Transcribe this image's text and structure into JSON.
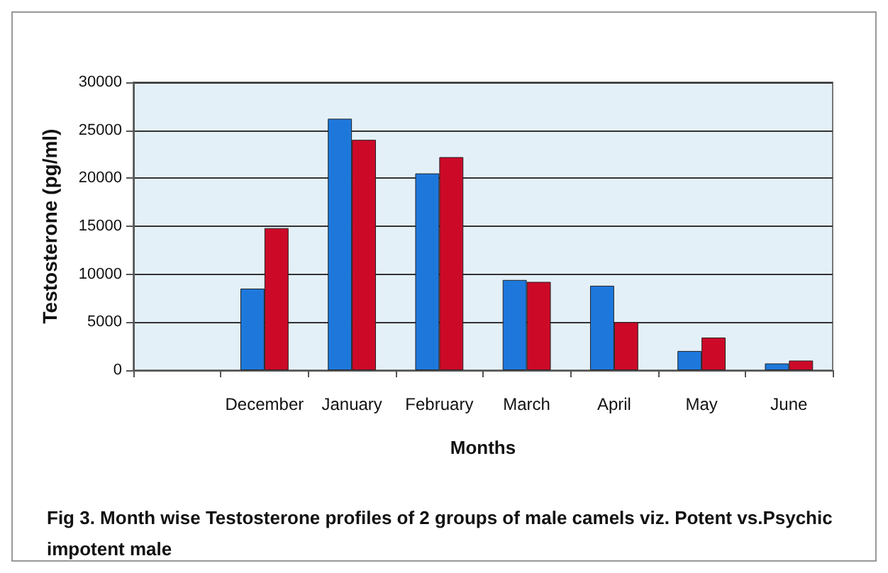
{
  "chart_data": {
    "type": "bar",
    "xlabel": "Months",
    "ylabel": "Testosterone (pg/ml)",
    "annotations": [
      "Fig 3. Month wise Testosterone profiles of 2 groups of male camels viz. Potent vs.Psychic impotent male"
    ],
    "categories": [
      null,
      "December",
      "January",
      "February",
      "March",
      "April",
      "May",
      "June"
    ],
    "series": [
      {
        "color": "#1e78dc",
        "values": [
          null,
          8500,
          26200,
          20500,
          9400,
          8800,
          2000,
          700
        ]
      },
      {
        "color": "#cc0a28",
        "values": [
          null,
          14800,
          24000,
          22200,
          9200,
          5000,
          3400,
          1000
        ]
      }
    ],
    "ylim": [
      0,
      30000
    ],
    "yticks": [
      0,
      5000,
      10000,
      15000,
      20000,
      25000,
      30000
    ],
    "grid": "y"
  }
}
